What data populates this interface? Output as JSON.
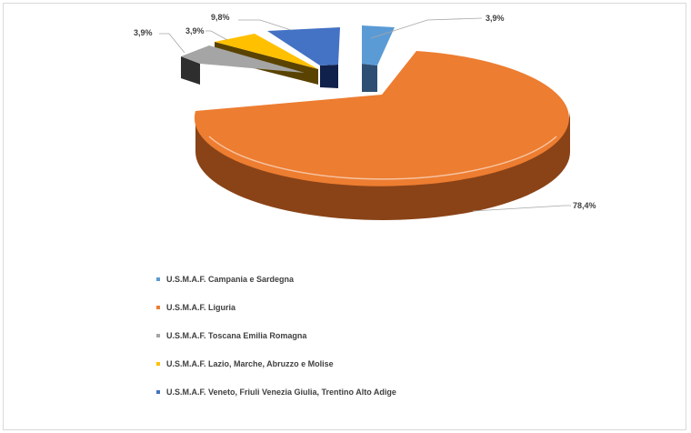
{
  "chart_data": {
    "type": "pie",
    "style": "3d-exploded",
    "title": "",
    "legend_position": "bottom-left",
    "slices": [
      {
        "name": "U.S.M.A.F. Campania e Sardegna",
        "value": 3.9,
        "label": "3,9%",
        "color": "#5b9bd5"
      },
      {
        "name": "U.S.M.A.F. Liguria",
        "value": 78.4,
        "label": "78,4%",
        "color": "#ed7d31"
      },
      {
        "name": "U.S.M.A.F. Toscana Emilia Romagna",
        "value": 3.9,
        "label": "3,9%",
        "color": "#a5a5a5"
      },
      {
        "name": "U.S.M.A.F. Lazio, Marche, Abruzzo e Molise",
        "value": 3.9,
        "label": "3,9%",
        "color": "#ffc000"
      },
      {
        "name": "U.S.M.A.F. Veneto, Friuli Venezia Giulia, Trentino Alto Adige",
        "value": 9.8,
        "label": "9,8%",
        "color": "#4472c4"
      }
    ]
  }
}
